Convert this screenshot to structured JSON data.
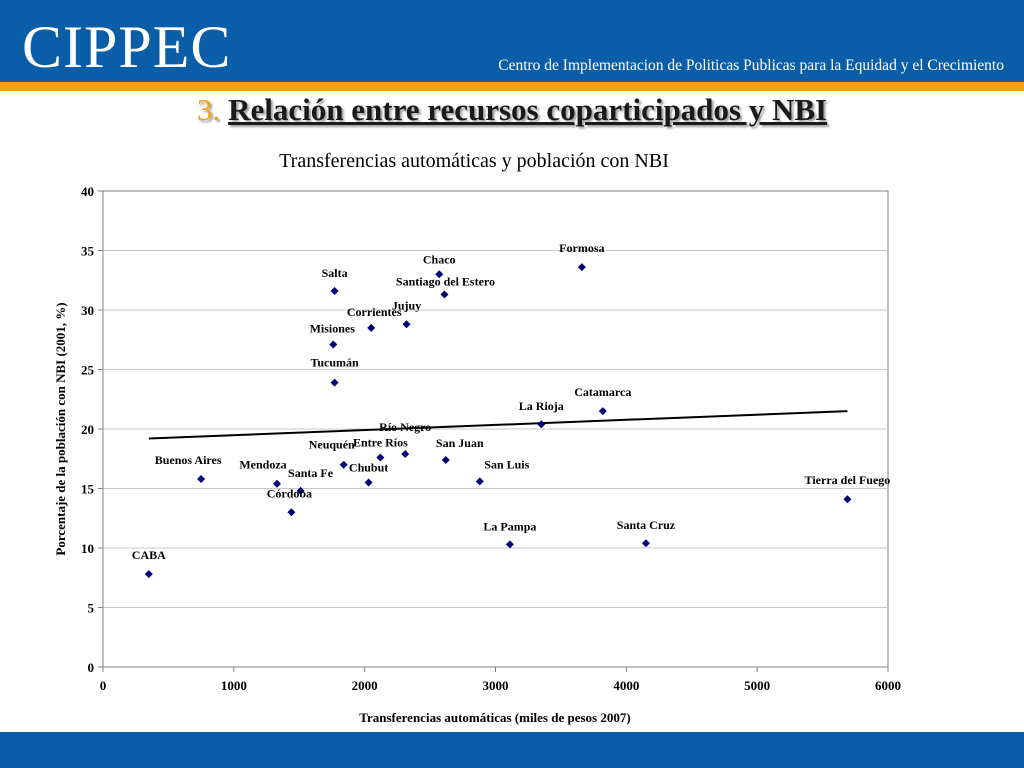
{
  "header": {
    "logo": "CIPPEC",
    "tagline": "Centro de Implementacion de Politicas Publicas para la Equidad y el Crecimiento"
  },
  "slide": {
    "number": "3.",
    "title": "Relación entre recursos coparticipados y NBI"
  },
  "colors": {
    "header": "#0a5ea8",
    "accent": "#f3a01a",
    "marker": "#00007a"
  },
  "chart_data": {
    "type": "scatter",
    "title": "Transferencias automáticas y población con NBI",
    "xlabel": "Transferencias automáticas (miles de pesos 2007)",
    "ylabel": "Porcentaje de la población con NBI (2001, %)",
    "xlim": [
      0,
      6000
    ],
    "ylim": [
      0,
      40
    ],
    "xticks": [
      0,
      1000,
      2000,
      3000,
      4000,
      5000,
      6000
    ],
    "yticks": [
      0,
      5,
      10,
      15,
      20,
      25,
      30,
      35,
      40
    ],
    "grid": "horizontal",
    "legend": "none",
    "points": [
      {
        "label": "CABA",
        "x": 350,
        "y": 7.8
      },
      {
        "label": "Buenos Aires",
        "x": 750,
        "y": 15.8
      },
      {
        "label": "Mendoza",
        "x": 1330,
        "y": 15.4
      },
      {
        "label": "Santa Fe",
        "x": 1510,
        "y": 14.8
      },
      {
        "label": "Córdoba",
        "x": 1440,
        "y": 13.0
      },
      {
        "label": "Neuquén",
        "x": 1840,
        "y": 17.0
      },
      {
        "label": "Entre Ríos",
        "x": 2120,
        "y": 17.6
      },
      {
        "label": "Río Negro",
        "x": 2310,
        "y": 17.9
      },
      {
        "label": "Chubut",
        "x": 2030,
        "y": 15.5
      },
      {
        "label": "San Juan",
        "x": 2620,
        "y": 17.4
      },
      {
        "label": "San Luis",
        "x": 2880,
        "y": 15.6
      },
      {
        "label": "La Pampa",
        "x": 3110,
        "y": 10.3
      },
      {
        "label": "Santa Cruz",
        "x": 4150,
        "y": 10.4
      },
      {
        "label": "Tierra del Fuego",
        "x": 5690,
        "y": 14.1
      },
      {
        "label": "La Rioja",
        "x": 3350,
        "y": 20.4
      },
      {
        "label": "Catamarca",
        "x": 3820,
        "y": 21.5
      },
      {
        "label": "Formosa",
        "x": 3660,
        "y": 33.6
      },
      {
        "label": "Chaco",
        "x": 2570,
        "y": 33.0
      },
      {
        "label": "Santiago del Estero",
        "x": 2610,
        "y": 31.3
      },
      {
        "label": "Salta",
        "x": 1770,
        "y": 31.6
      },
      {
        "label": "Jujuy",
        "x": 2320,
        "y": 28.8
      },
      {
        "label": "Corrientes",
        "x": 2050,
        "y": 28.5
      },
      {
        "label": "Misiones",
        "x": 1760,
        "y": 27.1
      },
      {
        "label": "Tucumán",
        "x": 1770,
        "y": 23.9
      }
    ],
    "trendline": {
      "x": [
        350,
        5690
      ],
      "y": [
        19.2,
        21.5
      ]
    }
  }
}
